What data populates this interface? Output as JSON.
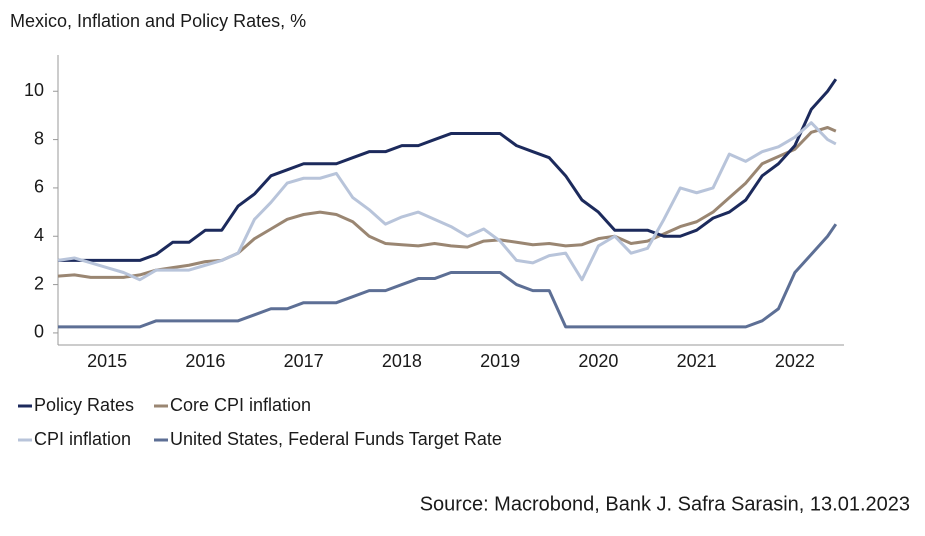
{
  "chart_data": {
    "type": "line",
    "title": "Mexico, Inflation and Policy Rates, %",
    "source": "Source: Macrobond, Bank J. Safra Sarasin, 13.01.2023",
    "x": [
      2015.0,
      2015.167,
      2015.333,
      2015.5,
      2015.667,
      2015.833,
      2016.0,
      2016.167,
      2016.333,
      2016.5,
      2016.667,
      2016.833,
      2017.0,
      2017.167,
      2017.333,
      2017.5,
      2017.667,
      2017.833,
      2018.0,
      2018.167,
      2018.333,
      2018.5,
      2018.667,
      2018.833,
      2019.0,
      2019.167,
      2019.333,
      2019.5,
      2019.667,
      2019.833,
      2020.0,
      2020.167,
      2020.333,
      2020.5,
      2020.667,
      2020.833,
      2021.0,
      2021.167,
      2021.333,
      2021.5,
      2021.667,
      2021.833,
      2022.0,
      2022.167,
      2022.333,
      2022.5,
      2022.667,
      2022.833,
      2022.917
    ],
    "xlim": [
      2015,
      2023
    ],
    "xticks": [
      {
        "value": 2015.5,
        "label": "2015"
      },
      {
        "value": 2016.5,
        "label": "2016"
      },
      {
        "value": 2017.5,
        "label": "2017"
      },
      {
        "value": 2018.5,
        "label": "2018"
      },
      {
        "value": 2019.5,
        "label": "2019"
      },
      {
        "value": 2020.5,
        "label": "2020"
      },
      {
        "value": 2021.5,
        "label": "2021"
      },
      {
        "value": 2022.5,
        "label": "2022"
      }
    ],
    "ylim": [
      -0.5,
      11.5
    ],
    "yticks": [
      0,
      2,
      4,
      6,
      8,
      10
    ],
    "series": [
      {
        "name": "Policy Rates",
        "color": "#1c2a5c",
        "values": [
          3,
          3,
          3,
          3,
          3,
          3,
          3.25,
          3.75,
          3.75,
          4.25,
          4.25,
          5.25,
          5.75,
          6.5,
          6.75,
          7,
          7,
          7,
          7.25,
          7.5,
          7.5,
          7.75,
          7.75,
          8,
          8.25,
          8.25,
          8.25,
          8.25,
          7.75,
          7.5,
          7.25,
          6.5,
          5.5,
          5,
          4.25,
          4.25,
          4.25,
          4,
          4,
          4.25,
          4.75,
          5,
          5.5,
          6.5,
          7,
          7.75,
          9.25,
          10,
          10.5
        ]
      },
      {
        "name": "Core CPI inflation",
        "color": "#9a8672",
        "values": [
          2.35,
          2.4,
          2.3,
          2.3,
          2.3,
          2.4,
          2.6,
          2.7,
          2.8,
          2.95,
          3.0,
          3.3,
          3.9,
          4.3,
          4.7,
          4.9,
          5.0,
          4.9,
          4.6,
          4.0,
          3.7,
          3.65,
          3.6,
          3.7,
          3.6,
          3.55,
          3.8,
          3.85,
          3.75,
          3.65,
          3.7,
          3.6,
          3.65,
          3.9,
          4.0,
          3.7,
          3.8,
          4.1,
          4.4,
          4.6,
          5.0,
          5.6,
          6.2,
          7.0,
          7.3,
          7.6,
          8.3,
          8.5,
          8.35
        ]
      },
      {
        "name": "CPI inflation",
        "color": "#b8c4da",
        "values": [
          3.0,
          3.1,
          2.9,
          2.7,
          2.5,
          2.2,
          2.6,
          2.6,
          2.6,
          2.8,
          3.0,
          3.3,
          4.7,
          5.4,
          6.2,
          6.4,
          6.4,
          6.6,
          5.6,
          5.1,
          4.5,
          4.8,
          5.0,
          4.7,
          4.4,
          4.0,
          4.3,
          3.8,
          3.0,
          2.9,
          3.2,
          3.3,
          2.2,
          3.6,
          4.0,
          3.3,
          3.5,
          4.7,
          6.0,
          5.8,
          6.0,
          7.4,
          7.1,
          7.5,
          7.7,
          8.1,
          8.7,
          8.0,
          7.82
        ]
      },
      {
        "name": "United States, Federal Funds Target Rate",
        "color": "#5d6f95",
        "values": [
          0.25,
          0.25,
          0.25,
          0.25,
          0.25,
          0.25,
          0.5,
          0.5,
          0.5,
          0.5,
          0.5,
          0.5,
          0.75,
          1.0,
          1.0,
          1.25,
          1.25,
          1.25,
          1.5,
          1.75,
          1.75,
          2.0,
          2.25,
          2.25,
          2.5,
          2.5,
          2.5,
          2.5,
          2.0,
          1.75,
          1.75,
          0.25,
          0.25,
          0.25,
          0.25,
          0.25,
          0.25,
          0.25,
          0.25,
          0.25,
          0.25,
          0.25,
          0.25,
          0.5,
          1.0,
          2.5,
          3.25,
          4.0,
          4.5
        ]
      }
    ]
  }
}
